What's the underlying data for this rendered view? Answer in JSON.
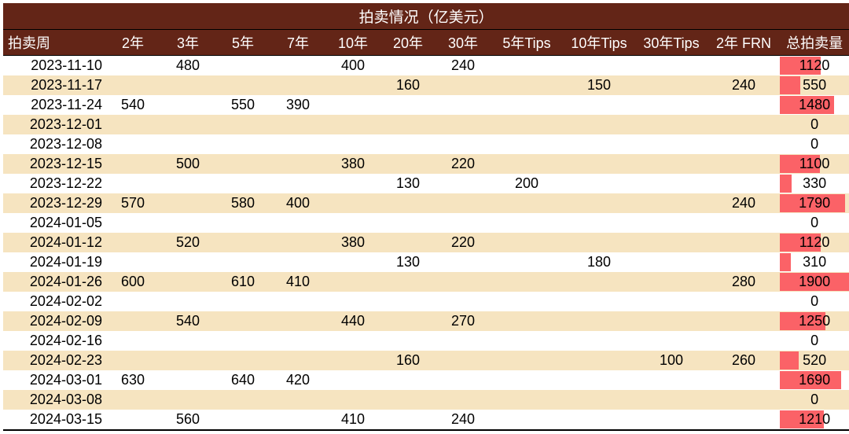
{
  "title": "拍卖情况（亿美元）",
  "columns": [
    "拍卖周",
    "2年",
    "3年",
    "5年",
    "7年",
    "10年",
    "20年",
    "30年",
    "5年Tips",
    "10年Tips",
    "30年Tips",
    "2年 FRN",
    "总拍卖量"
  ],
  "max_total": 1900,
  "bar_color": "#fb6267",
  "header_bg": "#632517",
  "stripe_bg": "#f6e4c0",
  "rows": [
    {
      "date": "2023-11-10",
      "v": [
        "",
        "480",
        "",
        "",
        "400",
        "",
        "240",
        "",
        "",
        "",
        ""
      ],
      "total": 1120
    },
    {
      "date": "2023-11-17",
      "v": [
        "",
        "",
        "",
        "",
        "",
        "160",
        "",
        "",
        "150",
        "",
        "240"
      ],
      "total": 550
    },
    {
      "date": "2023-11-24",
      "v": [
        "540",
        "",
        "550",
        "390",
        "",
        "",
        "",
        "",
        "",
        "",
        ""
      ],
      "total": 1480
    },
    {
      "date": "2023-12-01",
      "v": [
        "",
        "",
        "",
        "",
        "",
        "",
        "",
        "",
        "",
        "",
        ""
      ],
      "total": 0
    },
    {
      "date": "2023-12-08",
      "v": [
        "",
        "",
        "",
        "",
        "",
        "",
        "",
        "",
        "",
        "",
        ""
      ],
      "total": 0
    },
    {
      "date": "2023-12-15",
      "v": [
        "",
        "500",
        "",
        "",
        "380",
        "",
        "220",
        "",
        "",
        "",
        ""
      ],
      "total": 1100
    },
    {
      "date": "2023-12-22",
      "v": [
        "",
        "",
        "",
        "",
        "",
        "130",
        "",
        "200",
        "",
        "",
        ""
      ],
      "total": 330
    },
    {
      "date": "2023-12-29",
      "v": [
        "570",
        "",
        "580",
        "400",
        "",
        "",
        "",
        "",
        "",
        "",
        "240"
      ],
      "total": 1790
    },
    {
      "date": "2024-01-05",
      "v": [
        "",
        "",
        "",
        "",
        "",
        "",
        "",
        "",
        "",
        "",
        ""
      ],
      "total": 0
    },
    {
      "date": "2024-01-12",
      "v": [
        "",
        "520",
        "",
        "",
        "380",
        "",
        "220",
        "",
        "",
        "",
        ""
      ],
      "total": 1120
    },
    {
      "date": "2024-01-19",
      "v": [
        "",
        "",
        "",
        "",
        "",
        "130",
        "",
        "",
        "180",
        "",
        ""
      ],
      "total": 310
    },
    {
      "date": "2024-01-26",
      "v": [
        "600",
        "",
        "610",
        "410",
        "",
        "",
        "",
        "",
        "",
        "",
        "280"
      ],
      "total": 1900
    },
    {
      "date": "2024-02-02",
      "v": [
        "",
        "",
        "",
        "",
        "",
        "",
        "",
        "",
        "",
        "",
        ""
      ],
      "total": 0
    },
    {
      "date": "2024-02-09",
      "v": [
        "",
        "540",
        "",
        "",
        "440",
        "",
        "270",
        "",
        "",
        "",
        ""
      ],
      "total": 1250
    },
    {
      "date": "2024-02-16",
      "v": [
        "",
        "",
        "",
        "",
        "",
        "",
        "",
        "",
        "",
        "",
        ""
      ],
      "total": 0
    },
    {
      "date": "2024-02-23",
      "v": [
        "",
        "",
        "",
        "",
        "",
        "160",
        "",
        "",
        "",
        "100",
        "260"
      ],
      "total": 520
    },
    {
      "date": "2024-03-01",
      "v": [
        "630",
        "",
        "640",
        "420",
        "",
        "",
        "",
        "",
        "",
        "",
        ""
      ],
      "total": 1690
    },
    {
      "date": "2024-03-08",
      "v": [
        "",
        "",
        "",
        "",
        "",
        "",
        "",
        "",
        "",
        "",
        ""
      ],
      "total": 0
    },
    {
      "date": "2024-03-15",
      "v": [
        "",
        "560",
        "",
        "",
        "410",
        "",
        "240",
        "",
        "",
        "",
        ""
      ],
      "total": 1210
    }
  ]
}
